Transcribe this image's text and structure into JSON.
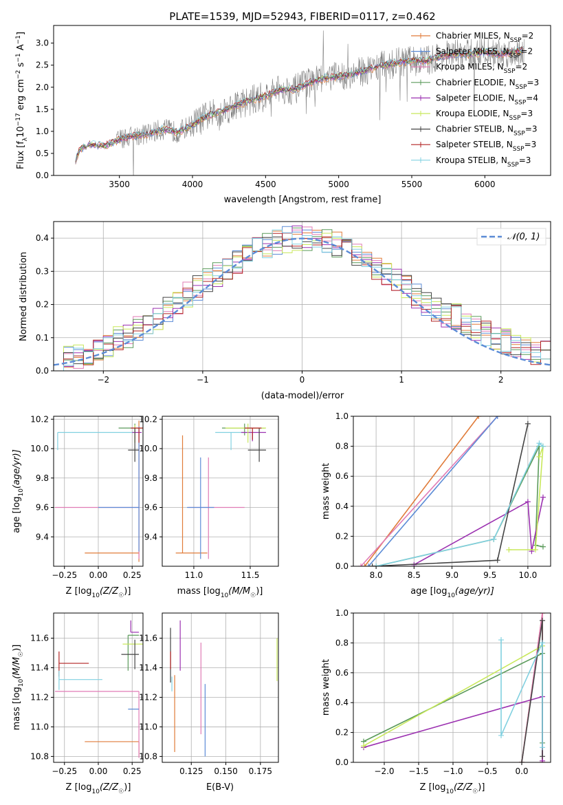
{
  "figure_title": "PLATE=1539, MJD=52943, FIBERID=0117, z=0.462",
  "colors": {
    "orange": "#e07b39",
    "blue": "#5b8bd6",
    "pink": "#e07bb5",
    "green": "#5a9a5a",
    "purple": "#9b30b0",
    "yellowgreen": "#c8e85a",
    "dark": "#444444",
    "darkred": "#b22222",
    "lightblue": "#80d0e0",
    "gray": "#808080",
    "normal": "#5b8bd6"
  },
  "chart_data": [
    {
      "id": "spectrum",
      "type": "line",
      "title": "PLATE=1539, MJD=52943, FIBERID=0117, z=0.462",
      "xlabel": "wavelength [Angstrom, rest frame]",
      "ylabel": "Flux [f",
      "ylabel_sub": "λ",
      "ylabel_rest": "10",
      "ylabel_exp": "−17",
      "ylabel_units": " erg cm",
      "ylabel_e2": "−2",
      "ylabel_s": " s",
      "ylabel_e3": "−1",
      "ylabel_A": " A",
      "ylabel_e4": "−1",
      "ylabel_end": "]",
      "xlim": [
        3050,
        6450
      ],
      "ylim": [
        0,
        3.4
      ],
      "xticks": [
        "3500",
        "4000",
        "4500",
        "5000",
        "5500",
        "6000"
      ],
      "yticks": [
        "0.0",
        "0.5",
        "1.0",
        "1.5",
        "2.0",
        "2.5",
        "3.0"
      ],
      "legend": [
        {
          "label": "Chabrier MILES, N",
          "sub": "SSP",
          "tail": "=2",
          "color": "#e07b39"
        },
        {
          "label": "Salpeter MILES, N",
          "sub": "SSP",
          "tail": "=2",
          "color": "#5b8bd6"
        },
        {
          "label": "Kroupa MILES, N",
          "sub": "SSP",
          "tail": "=2",
          "color": "#e07bb5"
        },
        {
          "label": "Chabrier ELODIE, N",
          "sub": "SSP",
          "tail": "=3",
          "color": "#5a9a5a"
        },
        {
          "label": "Salpeter ELODIE, N",
          "sub": "SSP",
          "tail": "=4",
          "color": "#9b30b0"
        },
        {
          "label": "Kroupa ELODIE, N",
          "sub": "SSP",
          "tail": "=3",
          "color": "#c8e85a"
        },
        {
          "label": "Chabrier STELIB, N",
          "sub": "SSP",
          "tail": "=3",
          "color": "#444444"
        },
        {
          "label": "Salpeter STELIB, N",
          "sub": "SSP",
          "tail": "=3",
          "color": "#b22222"
        },
        {
          "label": "Kroupa STELIB, N",
          "sub": "SSP",
          "tail": "=3",
          "color": "#80d0e0"
        }
      ],
      "continuum": {
        "x": [
          3200,
          3230,
          3300,
          3400,
          3450,
          3500,
          3600,
          3700,
          3800,
          3900,
          4000,
          4100,
          4200,
          4300,
          4400,
          4500,
          4600,
          4700,
          4800,
          4900,
          5000,
          5100,
          5200,
          5300,
          5400,
          5500,
          5600,
          5700,
          5800,
          5900,
          6000,
          6100,
          6200,
          6270
        ],
        "y": [
          0.35,
          0.6,
          0.7,
          0.67,
          0.74,
          0.82,
          0.9,
          0.95,
          1.05,
          0.98,
          1.15,
          1.35,
          1.45,
          1.6,
          1.7,
          1.8,
          1.95,
          1.95,
          2.1,
          2.2,
          2.25,
          2.3,
          2.4,
          2.5,
          2.55,
          2.6,
          2.6,
          2.7,
          2.75,
          2.75,
          2.8,
          2.75,
          2.8,
          2.85
        ]
      }
    },
    {
      "id": "residuals",
      "type": "histogram",
      "xlabel": "(data-model)/error",
      "ylabel": "Normed distribution",
      "xlim": [
        -2.5,
        2.5
      ],
      "ylim": [
        0,
        0.45
      ],
      "xticks": [
        "−2",
        "−1",
        "0",
        "1",
        "2"
      ],
      "yticks": [
        "0.0",
        "0.1",
        "0.2",
        "0.3",
        "0.4"
      ],
      "legend": "𝒩(0, 1)",
      "bin_width": 0.1
    },
    {
      "id": "age-vs-Z",
      "type": "scatter",
      "xlabel": "Z [log",
      "xlabel_sub": "10",
      "xlabel_rest": "(Z/Z",
      "xlabel_sun": "☉",
      "xlabel_end": ")]",
      "ylabel": "age  [log",
      "ylabel_sub": "10",
      "ylabel_rest": "(age/yr)]",
      "xlim": [
        -0.33,
        0.33
      ],
      "ylim": [
        9.2,
        10.22
      ],
      "xticks": [
        "−0.25",
        "0.00",
        "0.25"
      ],
      "yticks": [
        "9.4",
        "9.6",
        "9.8",
        "10.0",
        "10.2"
      ]
    },
    {
      "id": "age-vs-mass",
      "type": "scatter",
      "xlabel": "mass [log",
      "xlabel_sub": "10",
      "xlabel_rest": "(M/M",
      "xlabel_sun": "☉",
      "xlabel_end": ")]",
      "xlim": [
        10.72,
        11.75
      ],
      "ylim": [
        9.2,
        10.22
      ],
      "xticks": [
        "11.0",
        "11.5"
      ],
      "yticks": [
        "9.4",
        "9.6",
        "9.8",
        "10.0",
        "10.2"
      ]
    },
    {
      "id": "weight-vs-age",
      "type": "line",
      "xlabel": "age  [log",
      "xlabel_sub": "10",
      "xlabel_rest": "(age/yr)]",
      "ylabel": "mass weight",
      "xlim": [
        7.7,
        10.3
      ],
      "ylim": [
        0,
        1
      ],
      "xticks": [
        "8.0",
        "8.5",
        "9.0",
        "9.5",
        "10.0"
      ],
      "yticks": [
        "0.0",
        "0.2",
        "0.4",
        "0.6",
        "0.8",
        "1.0"
      ],
      "series": [
        {
          "color": "#e07b39",
          "x": [
            7.85,
            9.35
          ],
          "y": [
            0,
            1.0
          ]
        },
        {
          "color": "#e07bb5",
          "x": [
            7.8,
            9.6
          ],
          "y": [
            0,
            1.0
          ]
        },
        {
          "color": "#5b8bd6",
          "x": [
            7.9,
            9.6
          ],
          "y": [
            0,
            1.0
          ]
        },
        {
          "color": "#5a9a5a",
          "x": [
            8.0,
            9.55,
            10.15,
            10.1,
            10.2
          ],
          "y": [
            0,
            0.18,
            0.8,
            0.14,
            0.13
          ]
        },
        {
          "color": "#9b30b0",
          "x": [
            8.5,
            10.0,
            10.05,
            10.2
          ],
          "y": [
            0.01,
            0.43,
            0.1,
            0.46
          ]
        },
        {
          "color": "#c8e85a",
          "x": [
            9.75,
            10.1,
            10.2,
            10.15
          ],
          "y": [
            0.11,
            0.11,
            0.8,
            0.73
          ]
        },
        {
          "color": "#444444",
          "x": [
            7.95,
            9.6,
            10.0
          ],
          "y": [
            0,
            0.04,
            0.95
          ]
        },
        {
          "color": "#80d0e0",
          "x": [
            8.0,
            9.55,
            10.15,
            10.2
          ],
          "y": [
            0,
            0.18,
            0.82,
            0.8
          ]
        }
      ]
    },
    {
      "id": "mass-vs-Z",
      "type": "scatter",
      "xlabel": "Z [log",
      "xlabel_sub": "10",
      "xlabel_rest": "(Z/Z",
      "xlabel_sun": "☉",
      "xlabel_end": ")]",
      "ylabel": "mass [log",
      "ylabel_sub": "10",
      "ylabel_rest": "(M/M",
      "ylabel_sun": "☉",
      "ylabel_end": ")]",
      "xlim": [
        -0.33,
        0.33
      ],
      "ylim": [
        10.76,
        11.77
      ],
      "xticks": [
        "−0.25",
        "0.00",
        "0.25"
      ],
      "yticks": [
        "10.8",
        "11.0",
        "11.2",
        "11.4",
        "11.6"
      ]
    },
    {
      "id": "mass-vs-EBV",
      "type": "scatter",
      "xlabel": "E(B-V)",
      "xlim": [
        0.104,
        0.188
      ],
      "ylim": [
        10.76,
        11.77
      ],
      "xticks": [
        "0.125",
        "0.150",
        "0.175"
      ],
      "yticks": [
        "10.8",
        "11.0",
        "11.2",
        "11.4",
        "11.6"
      ]
    },
    {
      "id": "weight-vs-Z",
      "type": "line",
      "xlabel": "Z [log",
      "xlabel_sub": "10",
      "xlabel_rest": "(Z/Z",
      "xlabel_sun": "☉",
      "xlabel_end": ")]",
      "ylabel": "mass weight",
      "xlim": [
        -2.45,
        0.42
      ],
      "ylim": [
        0,
        1
      ],
      "xticks": [
        "−2.0",
        "−1.5",
        "−1.0",
        "−0.5",
        "0.0"
      ],
      "yticks": [
        "0.0",
        "0.2",
        "0.4",
        "0.6",
        "0.8",
        "1.0"
      ],
      "series": [
        {
          "color": "#e07b39",
          "x": [
            0.0,
            0.3,
            0.3
          ],
          "y": [
            0,
            1.0,
            0
          ]
        },
        {
          "color": "#e07bb5",
          "x": [
            0.0,
            0.3,
            0.3
          ],
          "y": [
            0,
            1.0,
            0
          ]
        },
        {
          "color": "#5a9a5a",
          "x": [
            -2.3,
            0.3,
            0.3
          ],
          "y": [
            0.14,
            0.73,
            0.13
          ]
        },
        {
          "color": "#9b30b0",
          "x": [
            -2.3,
            0.3,
            0.3
          ],
          "y": [
            0.1,
            0.44,
            0.01
          ]
        },
        {
          "color": "#c8e85a",
          "x": [
            -2.3,
            0.3
          ],
          "y": [
            0.11,
            0.78
          ]
        },
        {
          "color": "#444444",
          "x": [
            0.0,
            0.3,
            0.3
          ],
          "y": [
            0,
            0.95,
            0.04
          ]
        },
        {
          "color": "#80d0e0",
          "x": [
            -0.3,
            -0.3,
            0.3,
            0.3
          ],
          "y": [
            0.82,
            0.18,
            0.8,
            0.1
          ]
        }
      ]
    }
  ]
}
